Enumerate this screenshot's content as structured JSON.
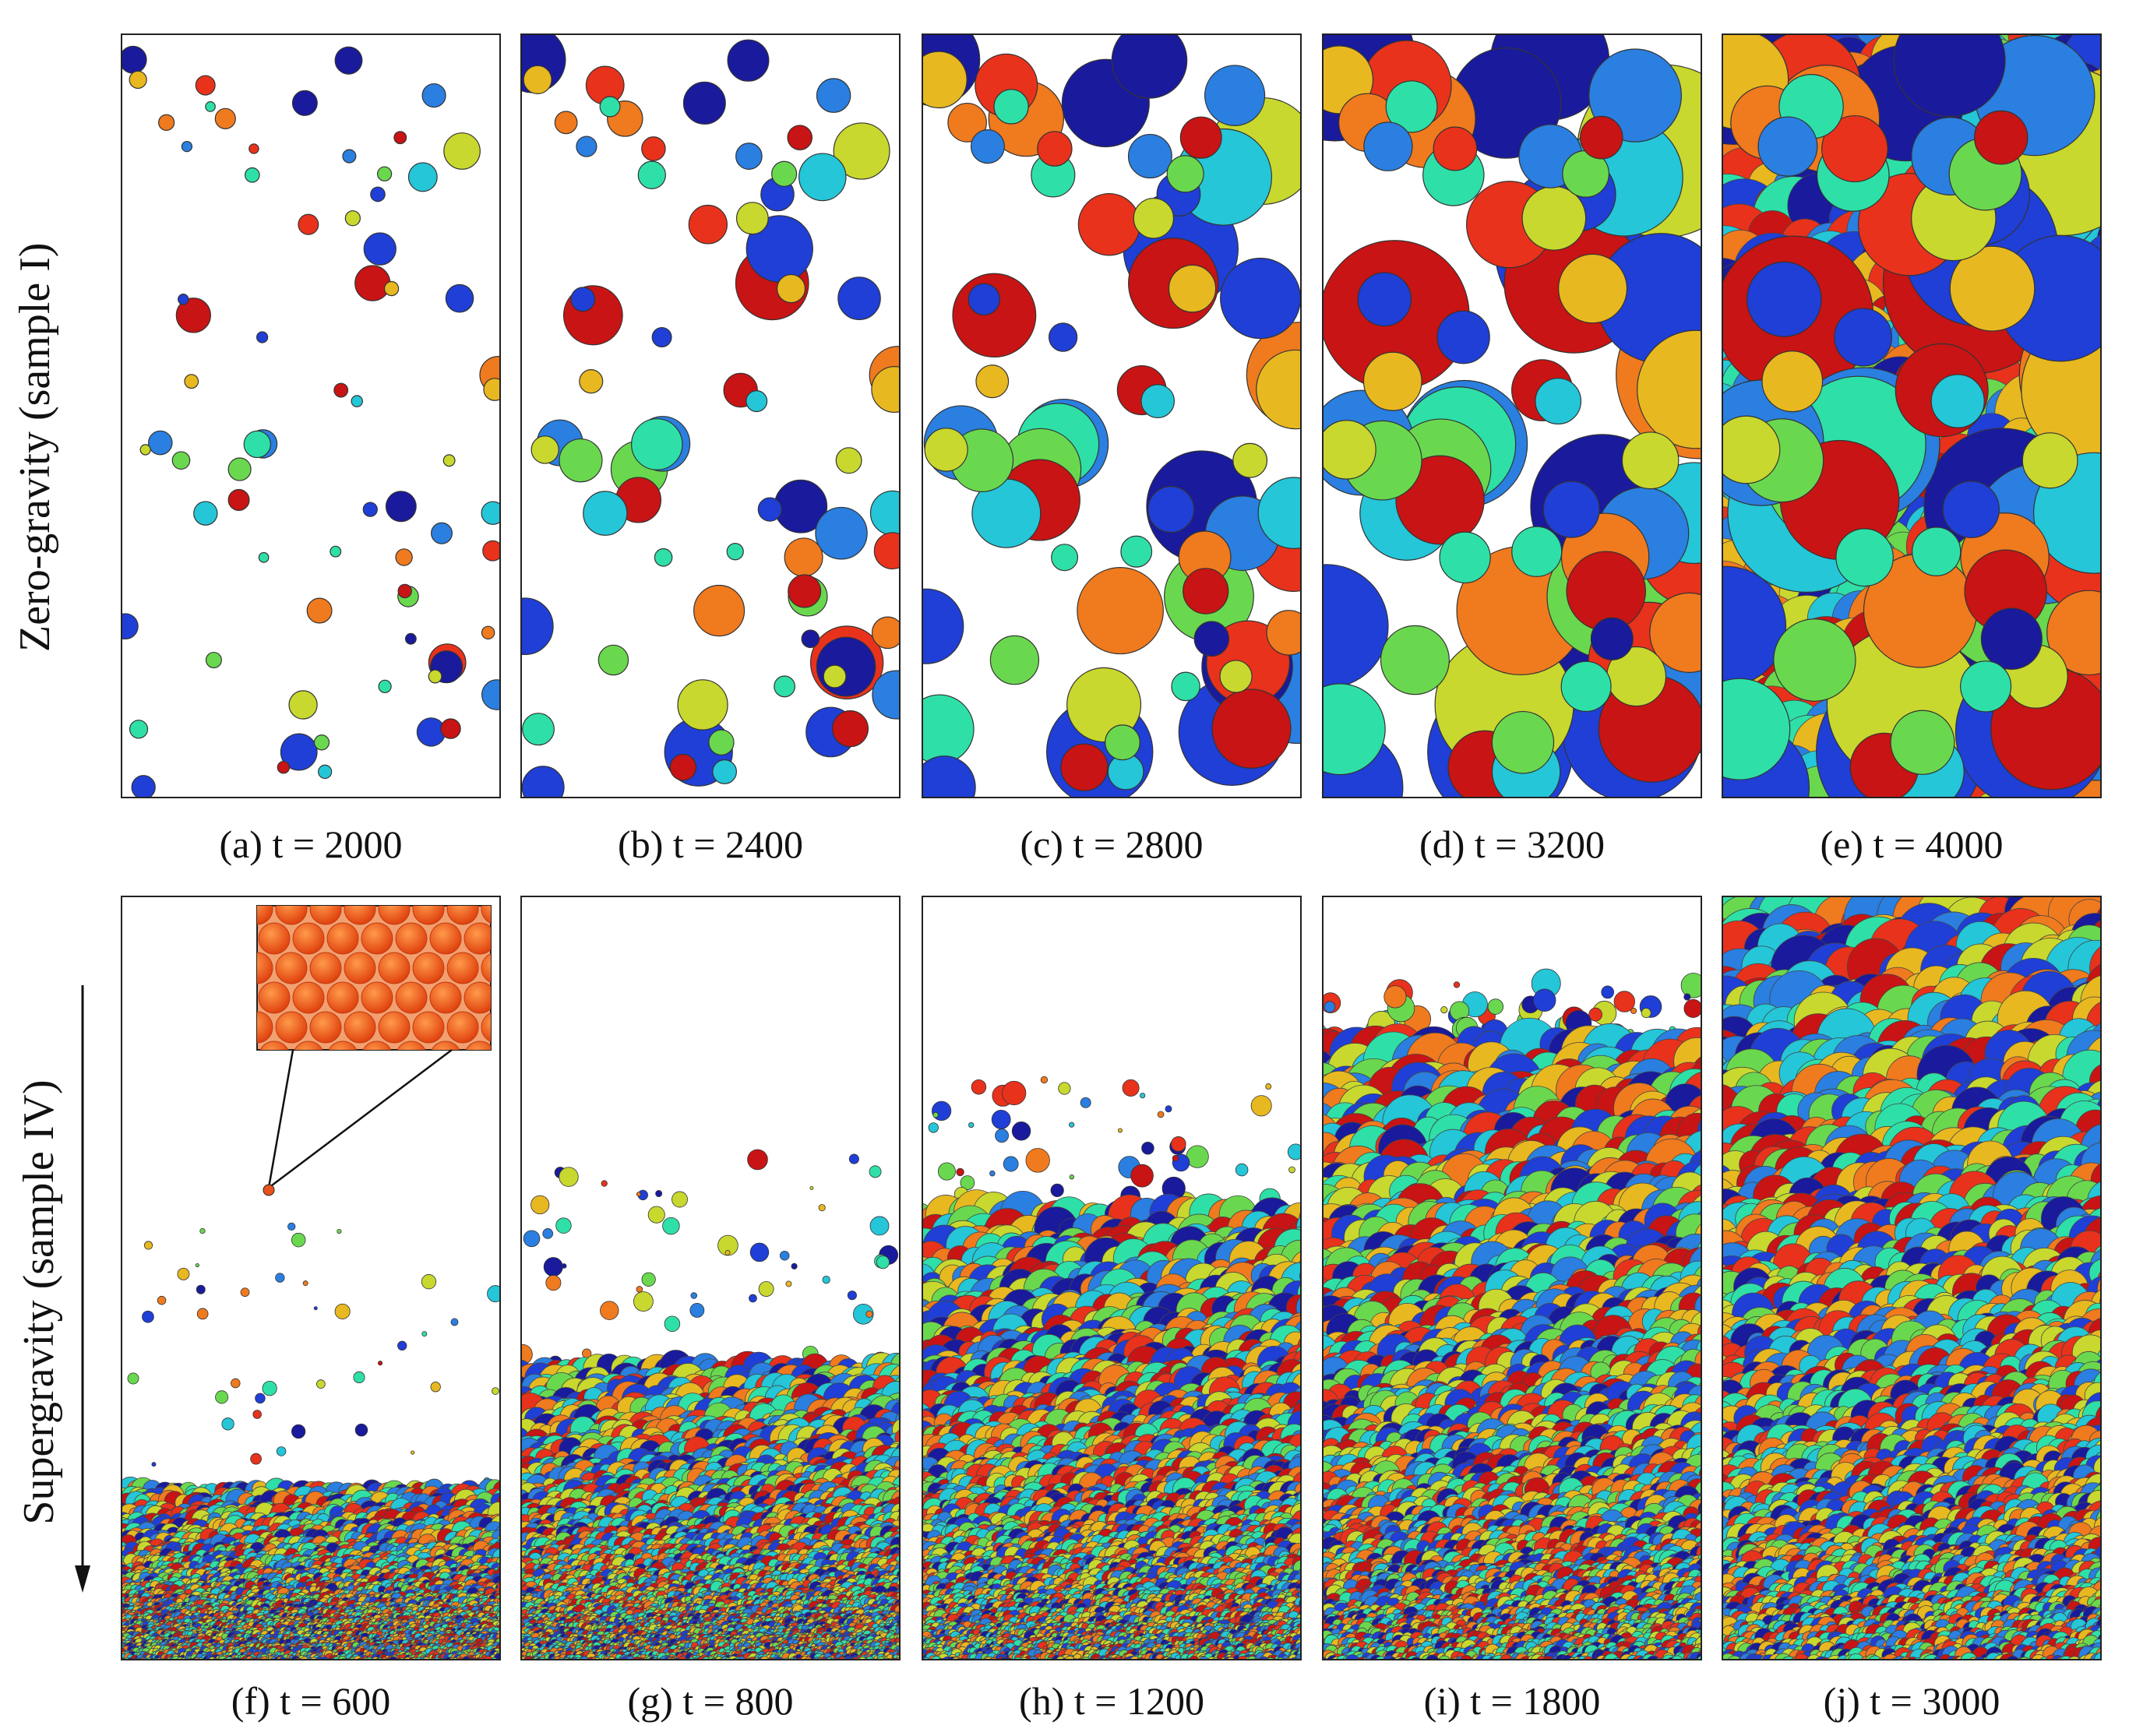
{
  "figure": {
    "row_labels": {
      "top": "Zero-gravity (sample I)",
      "bottom": "Supergravity (sample IV)"
    },
    "panels": [
      {
        "id": "a",
        "caption": "(a) t = 2000",
        "row": "top",
        "coverage": 0.22
      },
      {
        "id": "b",
        "caption": "(b) t = 2400",
        "row": "top",
        "coverage": 0.4
      },
      {
        "id": "c",
        "caption": "(c) t = 2800",
        "row": "top",
        "coverage": 0.62
      },
      {
        "id": "d",
        "caption": "(d) t = 3200",
        "row": "top",
        "coverage": 0.85
      },
      {
        "id": "e",
        "caption": "(e) t = 4000",
        "row": "top",
        "coverage": 1.0
      },
      {
        "id": "f",
        "caption": "(f) t = 600",
        "row": "bottom",
        "front": 0.78
      },
      {
        "id": "g",
        "caption": "(g) t = 800",
        "row": "bottom",
        "front": 0.62
      },
      {
        "id": "h",
        "caption": "(h) t = 1200",
        "row": "bottom",
        "front": 0.42
      },
      {
        "id": "i",
        "caption": "(i) t = 1800",
        "row": "bottom",
        "front": 0.2
      },
      {
        "id": "j",
        "caption": "(j) t = 3000",
        "row": "bottom",
        "front": 0.0
      }
    ],
    "palette": [
      "#1a1a9c",
      "#1f3fd6",
      "#2a7fe0",
      "#24c6d8",
      "#2ee0a8",
      "#6ad84e",
      "#c8d82e",
      "#e8b820",
      "#f07a1e",
      "#e8321c",
      "#c81414"
    ],
    "gravity_arrow": "down"
  }
}
